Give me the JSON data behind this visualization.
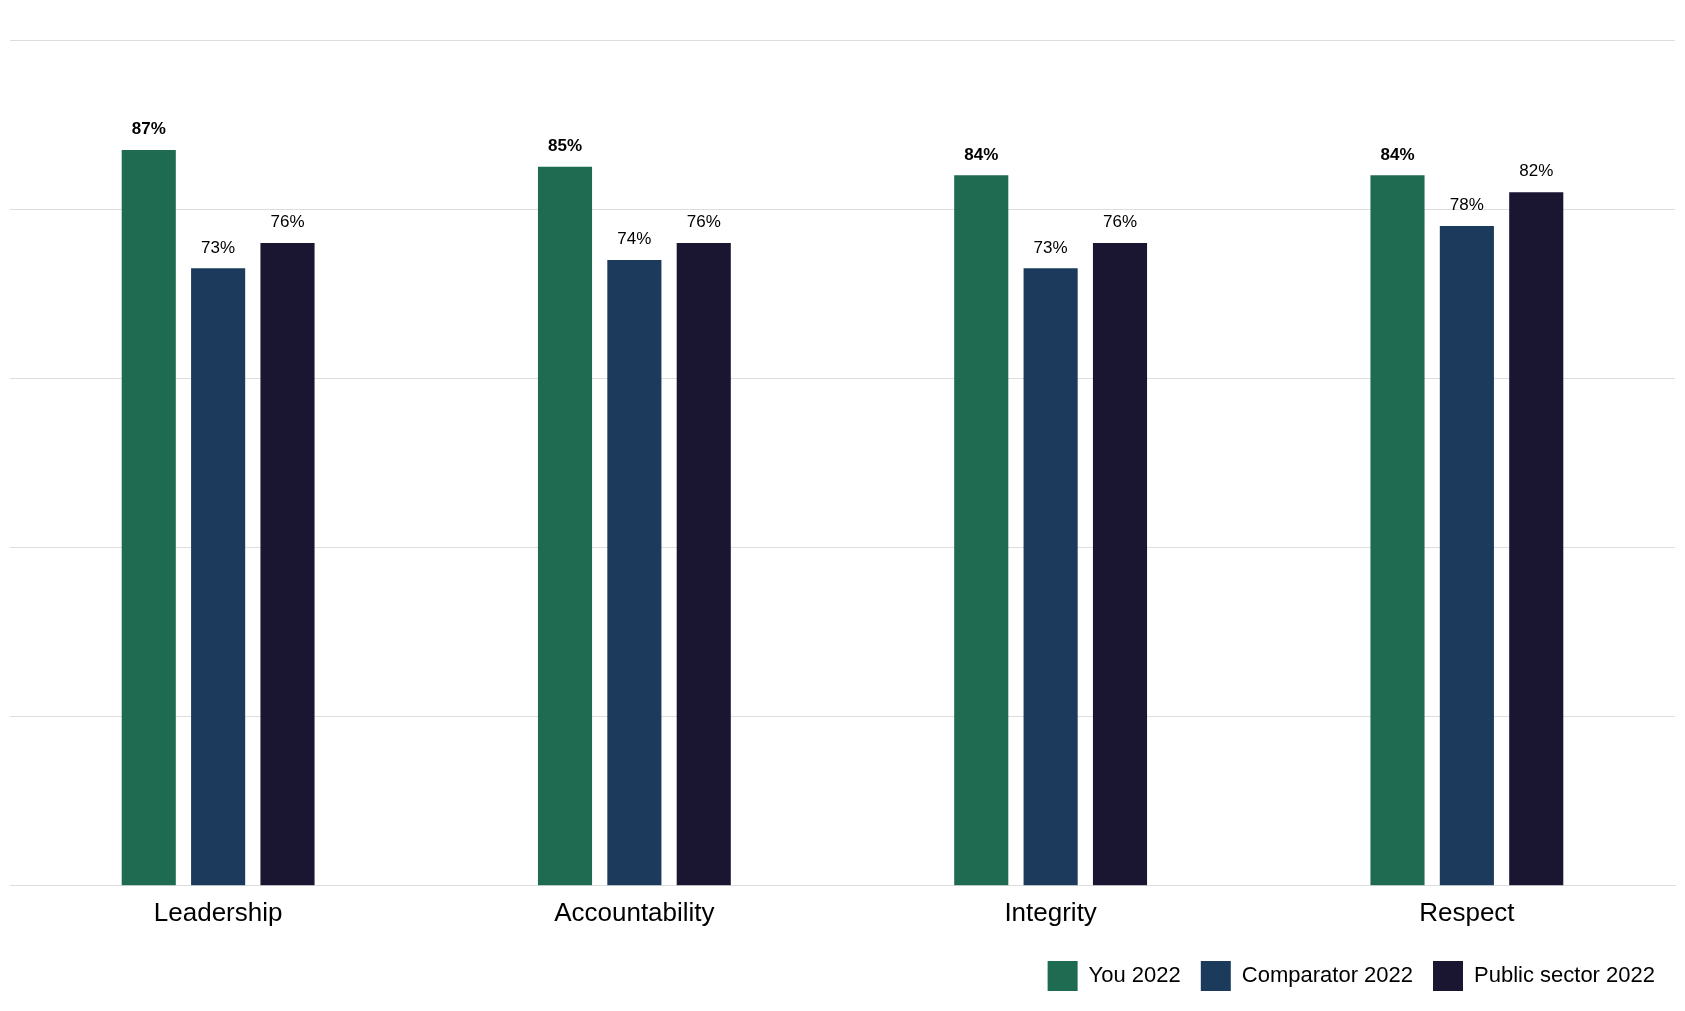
{
  "chart_data": {
    "type": "bar",
    "categories": [
      "Leadership",
      "Accountability",
      "Integrity",
      "Respect"
    ],
    "series": [
      {
        "name": "You 2022",
        "color": "#1e6b52",
        "values": [
          87,
          85,
          84,
          84
        ],
        "value_labels": [
          "87%",
          "85%",
          "84%",
          "84%"
        ]
      },
      {
        "name": "Comparator 2022",
        "color": "#1b3a5c",
        "values": [
          73,
          74,
          73,
          78
        ],
        "value_labels": [
          "73%",
          "74%",
          "73%",
          "78%"
        ]
      },
      {
        "name": "Public sector 2022",
        "color": "#1a1530",
        "values": [
          76,
          76,
          76,
          82
        ],
        "value_labels": [
          "76%",
          "76%",
          "76%",
          "82%"
        ]
      }
    ],
    "tick_labels": "x",
    "grid": "y",
    "legend": "bottom right"
  }
}
